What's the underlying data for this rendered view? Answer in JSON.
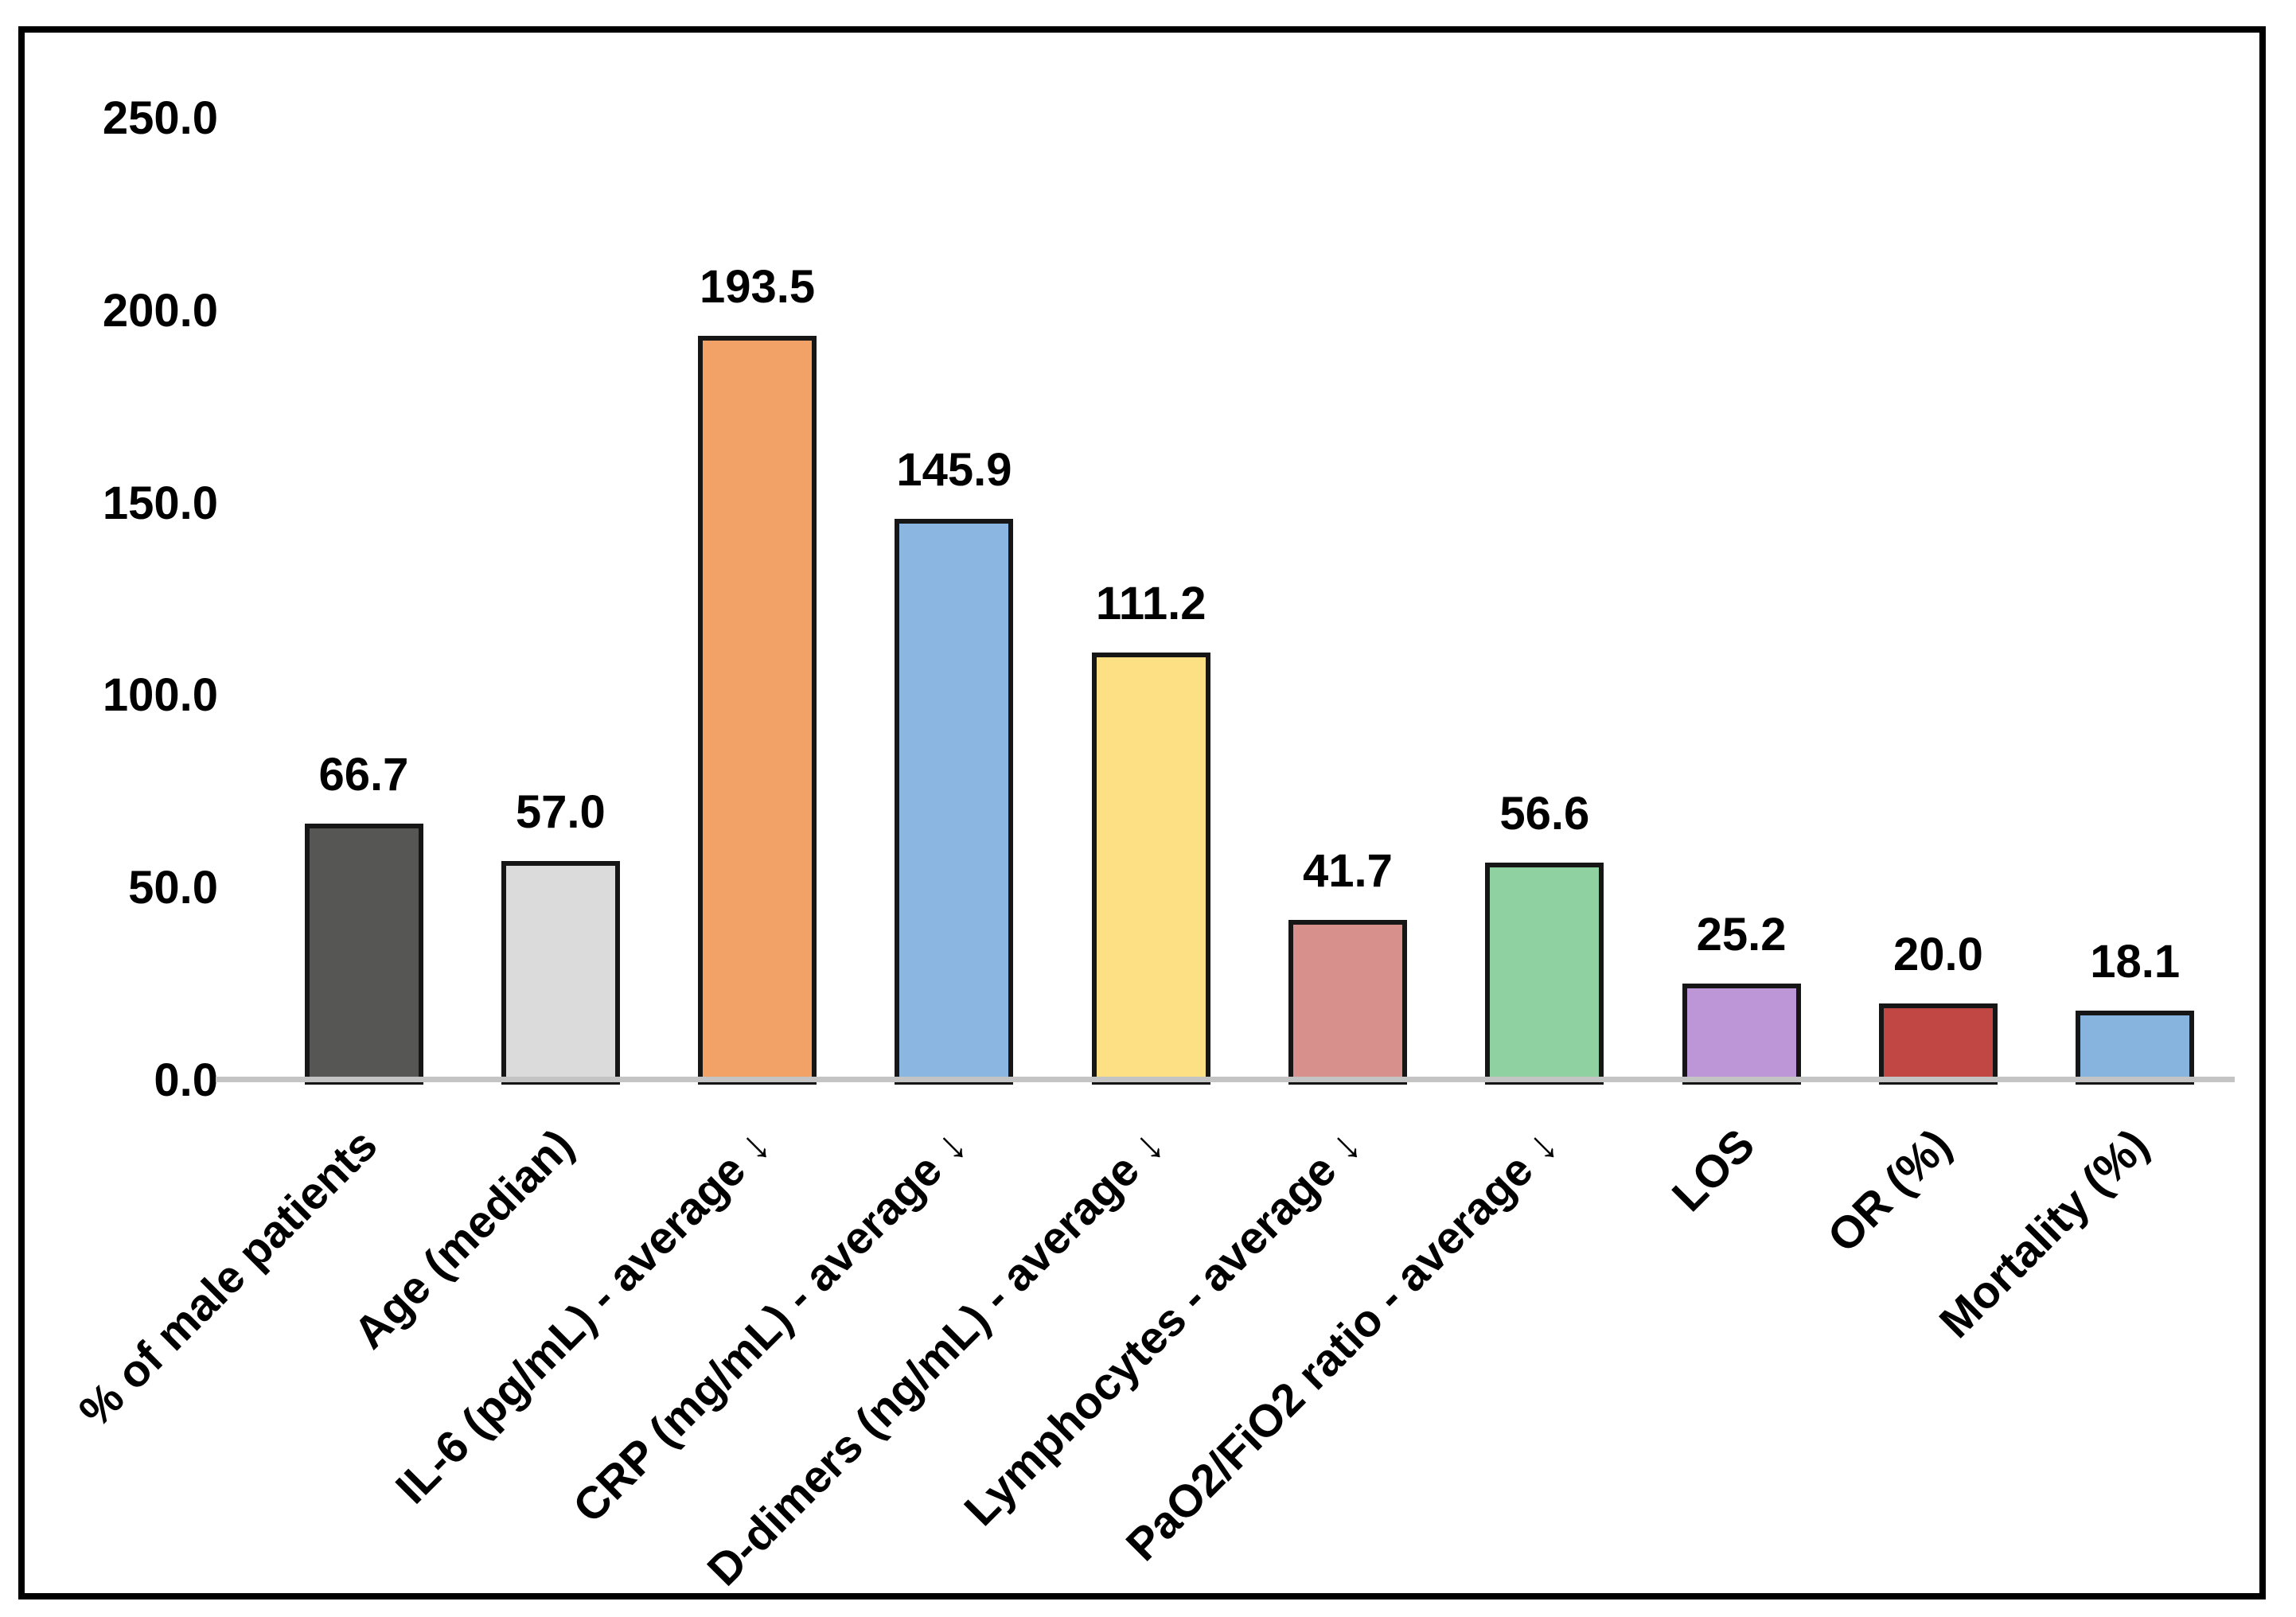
{
  "chart_data": {
    "type": "bar",
    "title": "",
    "xlabel": "",
    "ylabel": "",
    "categories": [
      "% of male patients",
      "Age (median)",
      "IL-6 (pg/mL) - average ↓",
      "CRP (mg/mL) - average ↓",
      "D-dimers (ng/mL) - average ↓",
      "Lymphocytes - average ↓",
      "PaO2/FiO2 ratio - average ↓",
      "LOS",
      "OR (%)",
      "Mortality (%)"
    ],
    "values": [
      66.7,
      57.0,
      193.5,
      145.9,
      111.2,
      41.7,
      56.6,
      25.2,
      20.0,
      18.1
    ],
    "value_labels": [
      "66.7",
      "57.0",
      "193.5",
      "145.9",
      "111.2",
      "41.7",
      "56.6",
      "25.2",
      "20.0",
      "18.1"
    ],
    "bar_colors": [
      "#565655",
      "#DBDBDB",
      "#F2A266",
      "#8CB6E2",
      "#FCE083",
      "#D7908C",
      "#90D1A1",
      "#BD96D8",
      "#C04743",
      "#86B4DF"
    ],
    "bar_border_color": "#161616",
    "y_axis": {
      "min": 0,
      "max": 250,
      "tick_interval": 50,
      "tick_labels": [
        "250.0",
        "200.0",
        "150.0",
        "100.0",
        "50.0",
        "0.0"
      ]
    },
    "axis_line_color": "#C4C4C4",
    "grid": false,
    "legend": null,
    "data_labels_shown": true,
    "category_rotation_degrees": 45
  }
}
